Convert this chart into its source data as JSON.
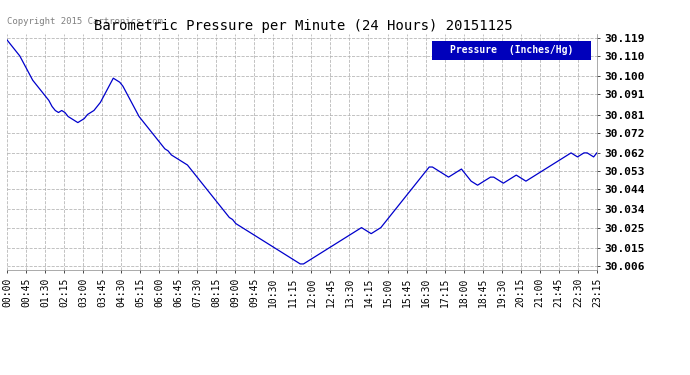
{
  "title": "Barometric Pressure per Minute (24 Hours) 20151125",
  "copyright": "Copyright 2015 Cartronics.com",
  "legend_label": "Pressure  (Inches/Hg)",
  "line_color": "#0000cc",
  "background_color": "#ffffff",
  "plot_bg_color": "#ffffff",
  "grid_color": "#b0b0b0",
  "legend_bg": "#0000bb",
  "legend_fg": "#ffffff",
  "ylim_min": 30.004,
  "ylim_max": 30.121,
  "yticks": [
    30.006,
    30.015,
    30.025,
    30.034,
    30.044,
    30.053,
    30.062,
    30.072,
    30.081,
    30.091,
    30.1,
    30.11,
    30.119
  ],
  "xtick_labels": [
    "00:00",
    "00:45",
    "01:30",
    "02:15",
    "03:00",
    "03:45",
    "04:30",
    "05:15",
    "06:00",
    "06:45",
    "07:30",
    "08:15",
    "09:00",
    "09:45",
    "10:30",
    "11:15",
    "12:00",
    "12:45",
    "13:30",
    "14:15",
    "15:00",
    "15:45",
    "16:30",
    "17:15",
    "18:00",
    "18:45",
    "19:30",
    "20:15",
    "21:00",
    "21:45",
    "22:30",
    "23:15"
  ],
  "pressure_data": [
    30.118,
    30.116,
    30.114,
    30.112,
    30.11,
    30.107,
    30.104,
    30.101,
    30.098,
    30.096,
    30.094,
    30.092,
    30.09,
    30.088,
    30.085,
    30.083,
    30.082,
    30.083,
    30.082,
    30.08,
    30.079,
    30.078,
    30.077,
    30.078,
    30.079,
    30.081,
    30.082,
    30.083,
    30.085,
    30.087,
    30.09,
    30.093,
    30.096,
    30.099,
    30.098,
    30.097,
    30.095,
    30.092,
    30.089,
    30.086,
    30.083,
    30.08,
    30.078,
    30.076,
    30.074,
    30.072,
    30.07,
    30.068,
    30.066,
    30.064,
    30.063,
    30.061,
    30.06,
    30.059,
    30.058,
    30.057,
    30.056,
    30.054,
    30.052,
    30.05,
    30.048,
    30.046,
    30.044,
    30.042,
    30.04,
    30.038,
    30.036,
    30.034,
    30.032,
    30.03,
    30.029,
    30.027,
    30.026,
    30.025,
    30.024,
    30.023,
    30.022,
    30.021,
    30.02,
    30.019,
    30.018,
    30.017,
    30.016,
    30.015,
    30.014,
    30.013,
    30.012,
    30.011,
    30.01,
    30.009,
    30.008,
    30.007,
    30.007,
    30.008,
    30.009,
    30.01,
    30.011,
    30.012,
    30.013,
    30.014,
    30.015,
    30.016,
    30.017,
    30.018,
    30.019,
    30.02,
    30.021,
    30.022,
    30.023,
    30.024,
    30.025,
    30.024,
    30.023,
    30.022,
    30.023,
    30.024,
    30.025,
    30.027,
    30.029,
    30.031,
    30.033,
    30.035,
    30.037,
    30.039,
    30.041,
    30.043,
    30.045,
    30.047,
    30.049,
    30.051,
    30.053,
    30.055,
    30.055,
    30.054,
    30.053,
    30.052,
    30.051,
    30.05,
    30.051,
    30.052,
    30.053,
    30.054,
    30.052,
    30.05,
    30.048,
    30.047,
    30.046,
    30.047,
    30.048,
    30.049,
    30.05,
    30.05,
    30.049,
    30.048,
    30.047,
    30.048,
    30.049,
    30.05,
    30.051,
    30.05,
    30.049,
    30.048,
    30.049,
    30.05,
    30.051,
    30.052,
    30.053,
    30.054,
    30.055,
    30.056,
    30.057,
    30.058,
    30.059,
    30.06,
    30.061,
    30.062,
    30.061,
    30.06,
    30.061,
    30.062,
    30.062,
    30.061,
    30.06,
    30.062
  ]
}
